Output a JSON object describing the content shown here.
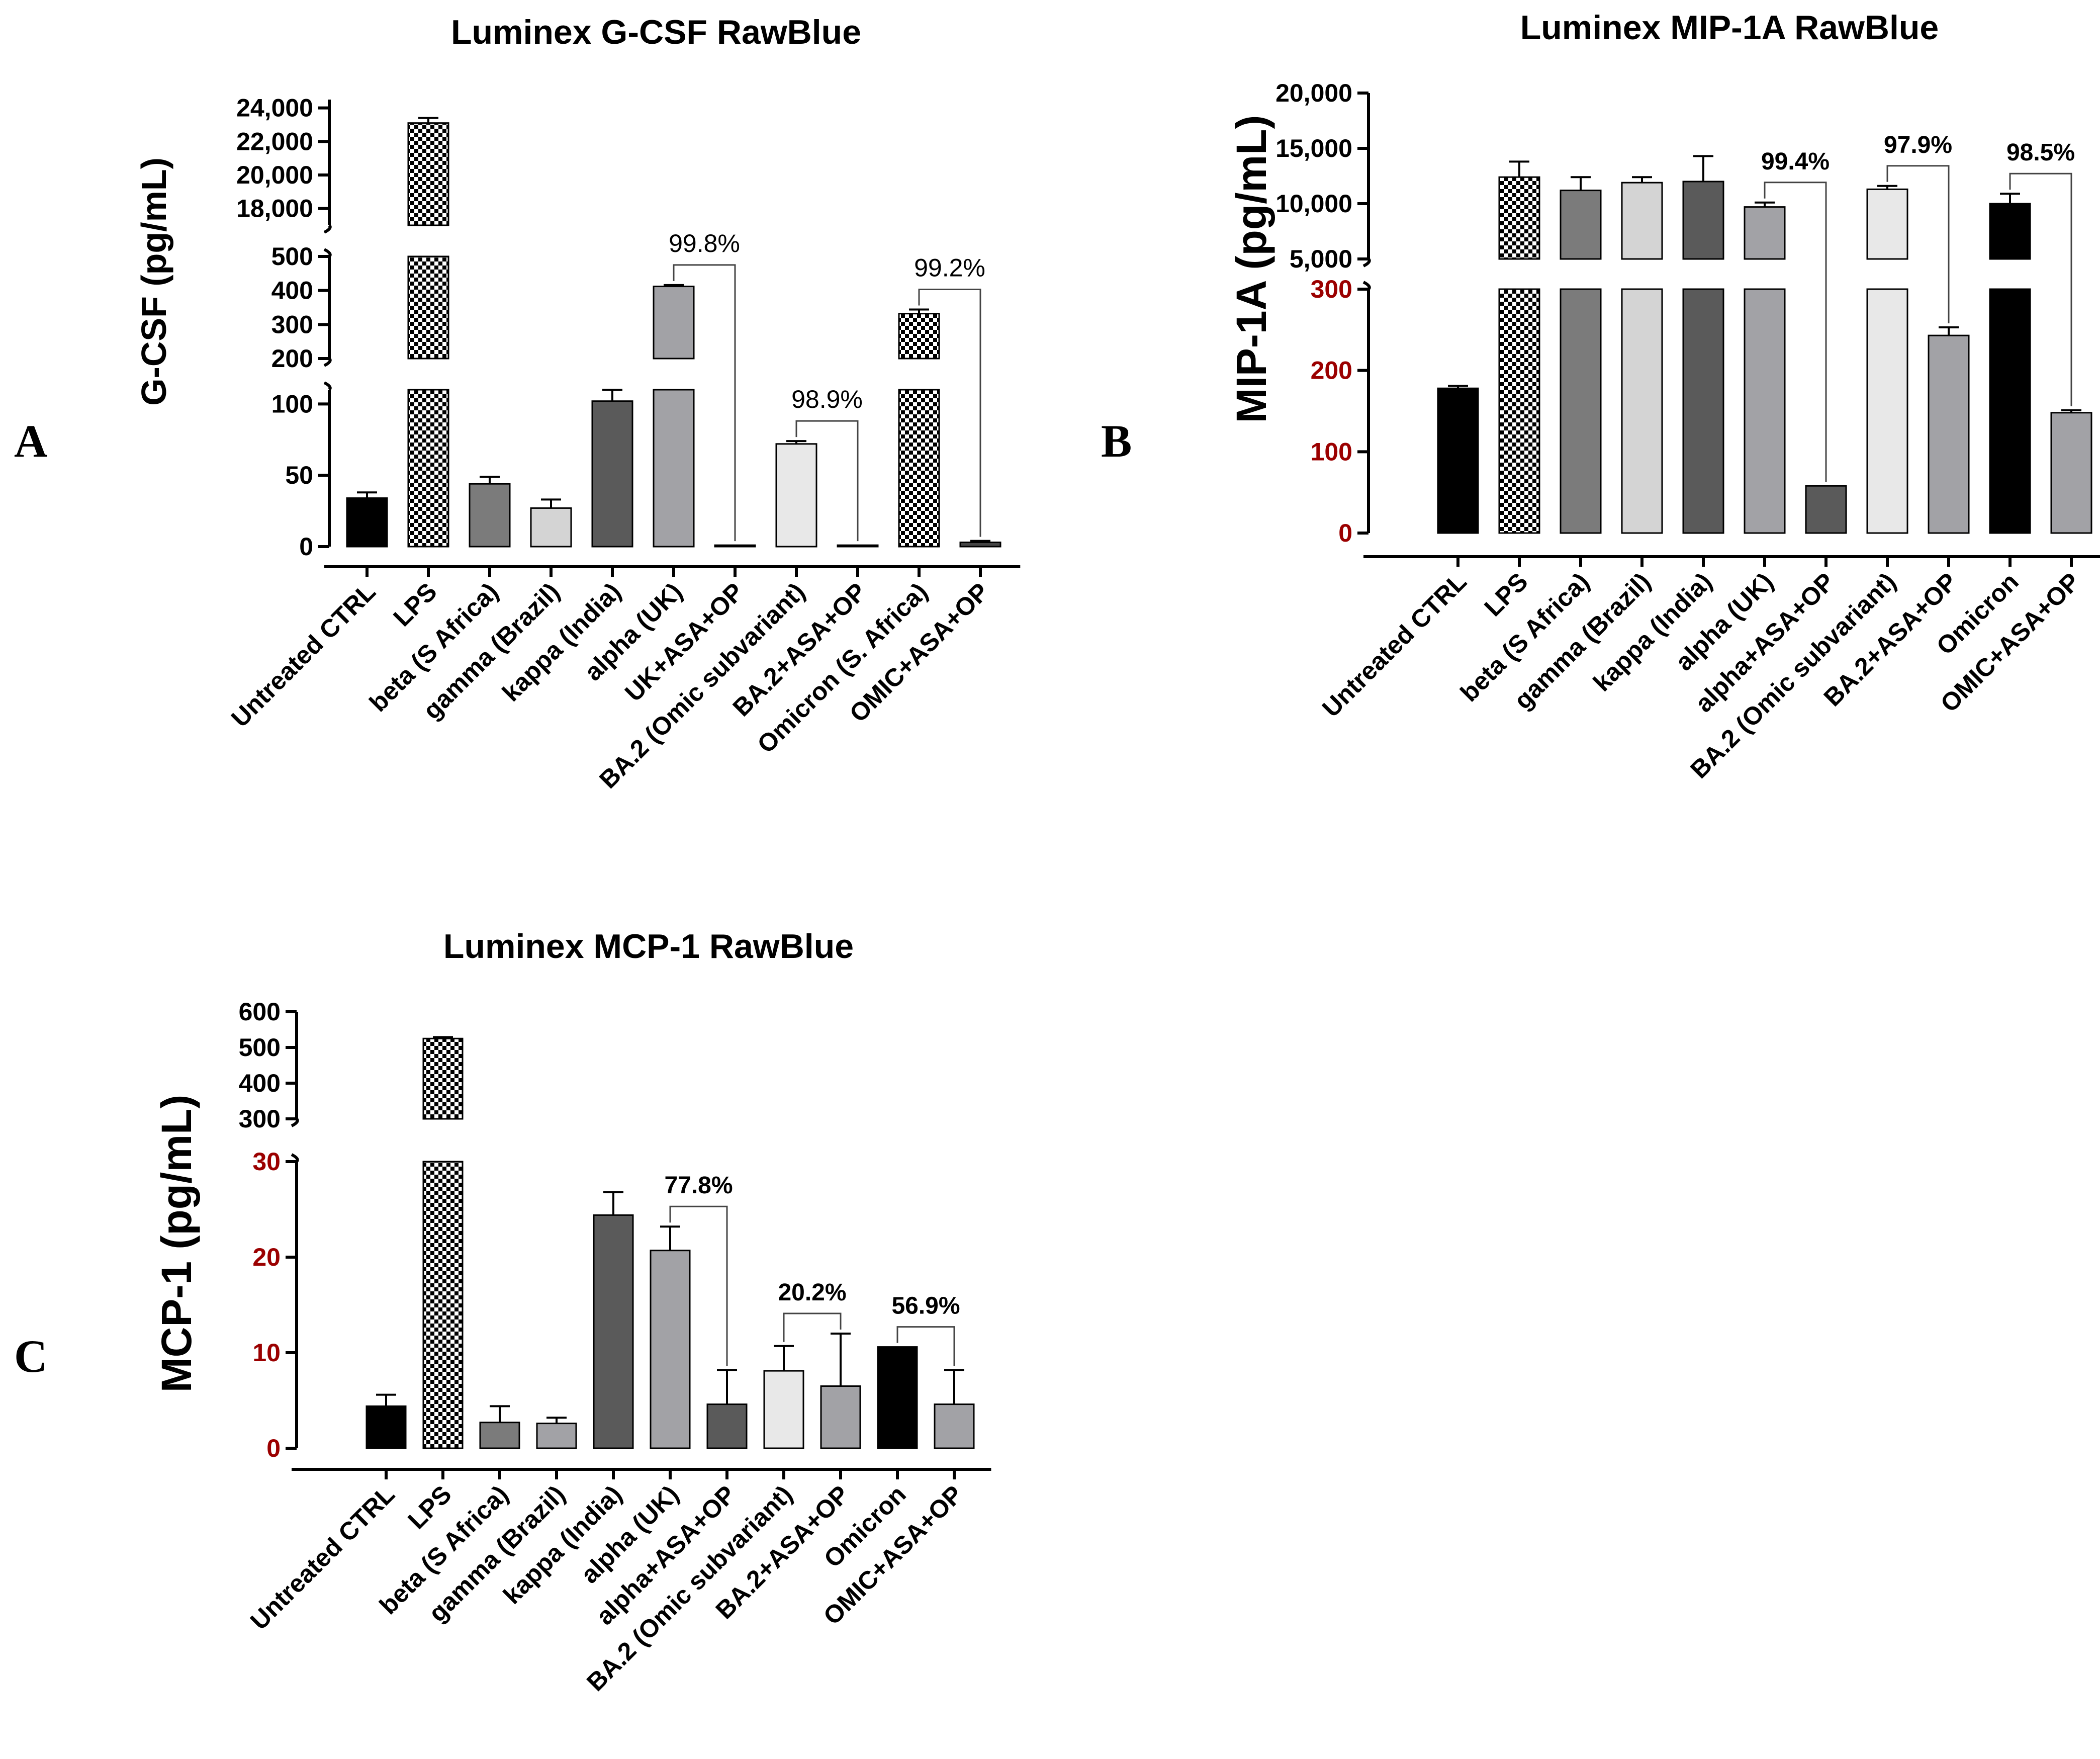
{
  "panels": [
    {
      "letter": "A",
      "title": "Luminex G-CSF RawBlue",
      "ylabel": "G-CSF (pg/mL)",
      "chart_data": {
        "type": "bar",
        "y_axis_break": true,
        "segments": [
          {
            "range": [
              0,
              110
            ],
            "ticks": [
              0,
              50,
              100
            ],
            "tick_labels": [
              "0",
              "50",
              "100"
            ]
          },
          {
            "range": [
              200,
              500
            ],
            "ticks": [
              200,
              300,
              400,
              500
            ],
            "tick_labels": [
              "200",
              "300",
              "400",
              "500"
            ]
          },
          {
            "range": [
              17000,
              24500
            ],
            "ticks": [
              18000,
              20000,
              22000,
              24000
            ],
            "tick_labels": [
              "18,000",
              "20,000",
              "22,000",
              "24,000"
            ]
          }
        ],
        "categories": [
          "Untreated CTRL",
          "LPS",
          "beta (S Africa)",
          "gamma (Brazil)",
          "kappa (India)",
          "alpha (UK)",
          "UK+ASA+OP",
          "BA.2 (Omic subvariant)",
          "BA.2+ASA+OP",
          "Omicron (S. Africa)",
          "OMIC+ASA+OP"
        ],
        "values": [
          34,
          23100,
          44,
          27,
          102,
          412,
          1,
          72,
          1,
          332,
          3
        ],
        "errors": [
          4,
          300,
          5,
          6,
          8,
          4,
          0,
          2,
          0,
          12,
          1
        ],
        "colors": [
          "#000000",
          "checker",
          "#7b7b7b",
          "#d4d4d4",
          "#5a5a5a",
          "#a2a2a6",
          "#ffffff",
          "#e8e8e8",
          "#ffffff",
          "checker",
          "#444444"
        ],
        "annotations": [
          {
            "from": 5,
            "to": 6,
            "label": "99.8%"
          },
          {
            "from": 7,
            "to": 8,
            "label": "98.9%"
          },
          {
            "from": 9,
            "to": 10,
            "label": "99.2%"
          }
        ]
      }
    },
    {
      "letter": "B",
      "title": "Luminex MIP-1A RawBlue",
      "ylabel": "MIP-1A (pg/mL)",
      "chart_data": {
        "type": "bar",
        "y_axis_break": true,
        "segments": [
          {
            "range": [
              0,
              300
            ],
            "ticks": [
              0,
              100,
              200,
              300
            ],
            "tick_labels": [
              "0",
              "100",
              "200",
              "300"
            ],
            "tick_color": "#9b0000"
          },
          {
            "range": [
              5000,
              20000
            ],
            "ticks": [
              5000,
              10000,
              15000,
              20000
            ],
            "tick_labels": [
              "5,000",
              "10,000",
              "15,000",
              "20,000"
            ]
          }
        ],
        "categories": [
          "Untreated CTRL",
          "LPS",
          "beta (S Africa)",
          "gamma (Brazil)",
          "kappa (India)",
          "alpha (UK)",
          "alpha+ASA+OP",
          "BA.2 (Omic subvariant)",
          "BA.2+ASA+OP",
          "Omicron",
          "OMIC+ASA+OP"
        ],
        "values": [
          178,
          12400,
          11200,
          11900,
          12000,
          9700,
          58,
          11300,
          243,
          10000,
          148
        ],
        "errors": [
          3,
          1400,
          1200,
          500,
          2300,
          400,
          0,
          300,
          10,
          900,
          3
        ],
        "colors": [
          "#000000",
          "checker",
          "#7b7b7b",
          "#d4d4d4",
          "#5a5a5a",
          "#a2a2a6",
          "#5a5a5a",
          "#e8e8e8",
          "#a2a2a6",
          "#000000",
          "#a2a2a6"
        ],
        "annotations": [
          {
            "from": 5,
            "to": 6,
            "label": "99.4%"
          },
          {
            "from": 7,
            "to": 8,
            "label": "97.9%"
          },
          {
            "from": 9,
            "to": 10,
            "label": "98.5%"
          }
        ]
      }
    },
    {
      "letter": "C",
      "title": "Luminex MCP-1 RawBlue",
      "ylabel": "MCP-1 (pg/mL)",
      "chart_data": {
        "type": "bar",
        "y_axis_break": true,
        "segments": [
          {
            "range": [
              0,
              30
            ],
            "ticks": [
              0,
              10,
              20,
              30
            ],
            "tick_labels": [
              "0",
              "10",
              "20",
              "30"
            ],
            "tick_color": "#9b0000"
          },
          {
            "range": [
              300,
              600
            ],
            "ticks": [
              300,
              400,
              500,
              600
            ],
            "tick_labels": [
              "300",
              "400",
              "500",
              "600"
            ]
          }
        ],
        "categories": [
          "Untreated CTRL",
          "LPS",
          "beta (S Africa)",
          "gamma (Brazil)",
          "kappa (India)",
          "alpha (UK)",
          "alpha+ASA+OP",
          "BA.2 (Omic subvariant)",
          "BA.2+ASA+OP",
          "Omicron",
          "OMIC+ASA+OP"
        ],
        "values": [
          4.4,
          525,
          2.7,
          2.6,
          24.4,
          20.7,
          4.6,
          8.1,
          6.5,
          10.6,
          4.6
        ],
        "errors": [
          1.2,
          4,
          1.7,
          0.6,
          2.4,
          2.5,
          3.6,
          2.6,
          5.5,
          0,
          3.6
        ],
        "colors": [
          "#000000",
          "checker",
          "#7b7b7b",
          "#a2a2a6",
          "#5a5a5a",
          "#a2a2a6",
          "#5a5a5a",
          "#e8e8e8",
          "#a2a2a6",
          "#000000",
          "#a2a2a6"
        ],
        "annotations": [
          {
            "from": 5,
            "to": 6,
            "label": "77.8%"
          },
          {
            "from": 7,
            "to": 8,
            "label": "20.2%"
          },
          {
            "from": 9,
            "to": 10,
            "label": "56.9%"
          }
        ]
      }
    }
  ]
}
